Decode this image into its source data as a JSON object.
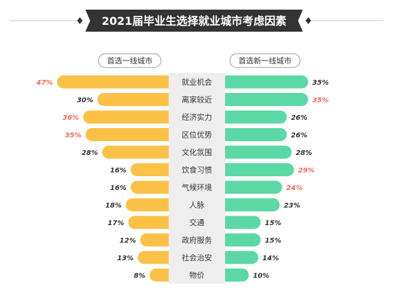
{
  "chart_data": {
    "type": "bar",
    "title": "2021届毕业生选择就业城市考虑因素",
    "left_legend": "首选一线城市",
    "right_legend": "首选新一线城市",
    "categories": [
      "就业机会",
      "离家较近",
      "经济实力",
      "区位优势",
      "文化氛围",
      "饮食习惯",
      "气候环境",
      "人脉",
      "交通",
      "政府服务",
      "社会治安",
      "物价"
    ],
    "series": [
      {
        "name": "首选一线城市",
        "values": [
          47,
          30,
          36,
          35,
          28,
          16,
          16,
          18,
          17,
          12,
          13,
          8
        ],
        "labels": [
          "47%",
          "30%",
          "36%",
          "35%",
          "28%",
          "16%",
          "16%",
          "18%",
          "17%",
          "12%",
          "13%",
          "8%"
        ],
        "highlight": [
          true,
          false,
          true,
          true,
          false,
          false,
          false,
          false,
          false,
          false,
          false,
          false
        ],
        "color": "#fcc147"
      },
      {
        "name": "首选新一线城市",
        "values": [
          35,
          35,
          26,
          26,
          28,
          29,
          24,
          23,
          15,
          15,
          14,
          10
        ],
        "labels": [
          "35%",
          "35%",
          "26%",
          "26%",
          "28%",
          "29%",
          "24%",
          "23%",
          "15%",
          "15%",
          "14%",
          "10%"
        ],
        "highlight": [
          false,
          true,
          false,
          false,
          false,
          true,
          true,
          false,
          false,
          false,
          false,
          false
        ],
        "color": "#5cd8a6"
      }
    ],
    "colors": {
      "title_bg": "#333333",
      "title_text": "#ffffff",
      "center_bg": "#eeeeee",
      "label_text": "#333333",
      "highlight_text": "#f36b5b",
      "line": "#c8c8c8"
    }
  }
}
